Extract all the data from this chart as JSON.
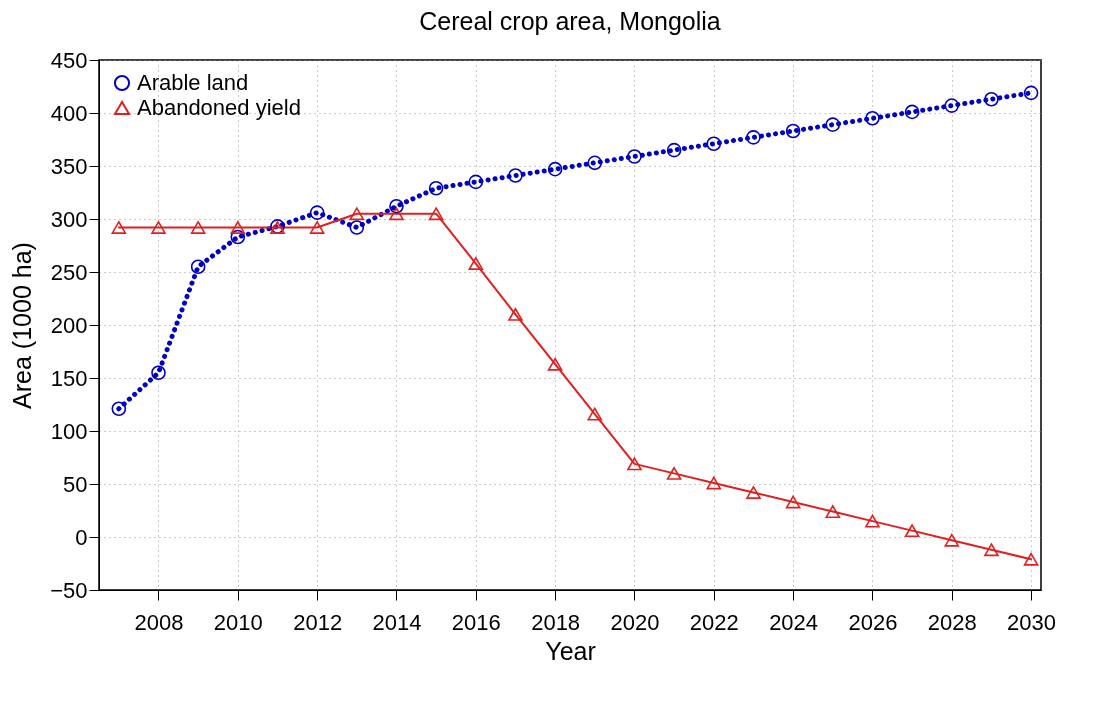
{
  "chart_data": {
    "type": "line",
    "title": "Cereal crop area, Mongolia",
    "xlabel": "Year",
    "ylabel": "Area (1000 ha)",
    "x": [
      2007,
      2008,
      2009,
      2010,
      2011,
      2012,
      2013,
      2014,
      2015,
      2016,
      2017,
      2018,
      2019,
      2020,
      2021,
      2022,
      2023,
      2024,
      2025,
      2026,
      2027,
      2028,
      2029,
      2030
    ],
    "series": [
      {
        "name": "Arable land",
        "color": "#0000c0",
        "line_style": "dotted",
        "marker": "circle",
        "values": [
          121,
          155,
          255,
          283,
          293,
          306,
          292,
          312,
          329,
          335,
          341,
          347,
          353,
          359,
          365,
          371,
          377,
          383,
          389,
          395,
          401,
          407,
          413,
          419
        ]
      },
      {
        "name": "Abandoned yield",
        "color": "#e02020",
        "line_style": "solid",
        "marker": "triangle",
        "values": [
          292,
          292,
          292,
          292,
          292,
          292,
          305,
          305,
          305,
          258,
          210,
          163,
          116,
          69,
          60,
          51,
          42,
          33,
          24,
          15,
          6,
          -3,
          -12,
          -21
        ]
      }
    ],
    "xlim": [
      2006.5,
      2030.25
    ],
    "xticks": [
      2008,
      2010,
      2012,
      2014,
      2016,
      2018,
      2020,
      2022,
      2024,
      2026,
      2028,
      2030
    ],
    "ylim": [
      -50,
      450
    ],
    "yticks": [
      -50,
      0,
      50,
      100,
      150,
      200,
      250,
      300,
      350,
      400,
      450
    ],
    "grid": true,
    "legend": "top left"
  }
}
